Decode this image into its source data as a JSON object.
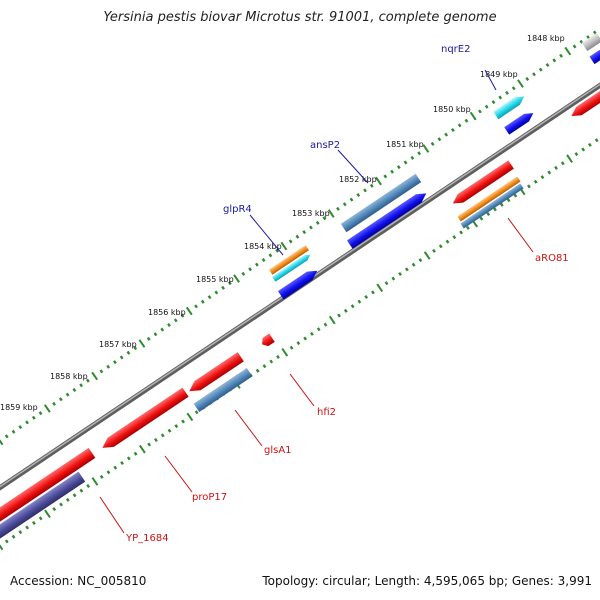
{
  "title": "Yersinia pestis biovar Microtus str. 91001, complete genome",
  "footer": {
    "accession": "Accession: NC_005810",
    "summary": "Topology: circular; Length: 4,595,065 bp; Genes: 3,991"
  },
  "colors": {
    "backbone": "#8a8a8a",
    "ticks": "#2e8b2e",
    "label_forward": "#1a1aa6",
    "label_reverse": "#cc1111",
    "red": "#ee1111",
    "blue": "#1111ee",
    "steel": "#4f86b8",
    "cyan": "#22d6e8",
    "orange": "#f08a1a",
    "slate": "#4b4b9a",
    "silver": "#bbbbbb"
  },
  "scale_labels": [
    "1848 kbp",
    "1849 kbp",
    "1850 kbp",
    "1851 kbp",
    "1852 kbp",
    "1853 kbp",
    "1854 kbp",
    "1855 kbp",
    "1856 kbp",
    "1857 kbp",
    "1858 kbp",
    "1859 kbp"
  ],
  "gene_labels": {
    "nqrE2": "nqrE2",
    "ansP2": "ansP2",
    "glpR4": "glpR4",
    "aRO81": "aRO81",
    "hfi2": "hfi2",
    "glsA1": "glsA1",
    "proP17": "proP17",
    "yp1684": "YP_1684"
  }
}
